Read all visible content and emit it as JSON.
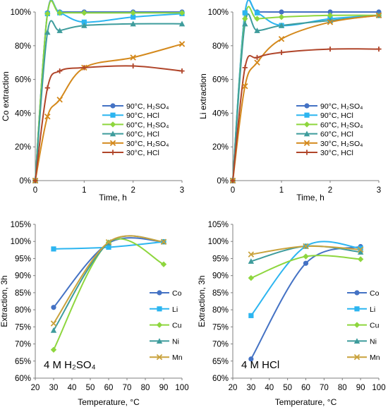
{
  "chart_data": [
    {
      "type": "line",
      "xlabel": "Time, h",
      "ylabel": "Co extraction",
      "xlim": [
        0,
        3
      ],
      "ylim": [
        0,
        100
      ],
      "x_ticks": [
        "0",
        "1",
        "2",
        "3"
      ],
      "y_ticks": [
        "0%",
        "20%",
        "40%",
        "60%",
        "80%",
        "100%"
      ],
      "grid": false,
      "legend_position": "center-right",
      "series": [
        {
          "name": "90°C, H₂SO₄",
          "color": "#4472C4",
          "marker": "circle",
          "x": [
            0,
            0.25,
            0.5,
            1,
            2,
            3
          ],
          "y": [
            0,
            99.5,
            100,
            100,
            100,
            100
          ]
        },
        {
          "name": "90°C, HCl",
          "color": "#2CB5F0",
          "marker": "square",
          "x": [
            0,
            0.25,
            0.5,
            1,
            2,
            3
          ],
          "y": [
            0,
            99,
            99.5,
            94,
            97,
            99
          ]
        },
        {
          "name": "60°C, H₂SO₄",
          "color": "#8ED63E",
          "marker": "diamond",
          "x": [
            0,
            0.25,
            0.5,
            1,
            2,
            3
          ],
          "y": [
            0,
            99,
            99.5,
            99.5,
            99.5,
            99.5
          ]
        },
        {
          "name": "60°C, HCl",
          "color": "#3E9C9C",
          "marker": "triangle",
          "x": [
            0,
            0.25,
            0.5,
            1,
            2,
            3
          ],
          "y": [
            0,
            88,
            89,
            92,
            93,
            93
          ]
        },
        {
          "name": "30°C, H₂SO₄",
          "color": "#D4891C",
          "marker": "x",
          "x": [
            0,
            0.25,
            0.5,
            1,
            2,
            3
          ],
          "y": [
            0,
            38,
            48,
            67,
            73,
            81
          ]
        },
        {
          "name": "30°C, HCl",
          "color": "#B0452A",
          "marker": "cross",
          "x": [
            0,
            0.25,
            0.5,
            1,
            2,
            3
          ],
          "y": [
            0,
            55,
            65,
            67,
            68,
            65
          ]
        }
      ]
    },
    {
      "type": "line",
      "xlabel": "Time, h",
      "ylabel": "Li extraction",
      "xlim": [
        0,
        3
      ],
      "ylim": [
        0,
        100
      ],
      "x_ticks": [
        "0",
        "1",
        "2",
        "3"
      ],
      "y_ticks": [
        "0%",
        "20%",
        "40%",
        "60%",
        "80%",
        "100%"
      ],
      "grid": false,
      "legend_position": "center-right",
      "series": [
        {
          "name": "90°C, H₂SO₄",
          "color": "#4472C4",
          "marker": "circle",
          "x": [
            0,
            0.25,
            0.5,
            1,
            2,
            3
          ],
          "y": [
            0,
            99.5,
            100,
            100,
            100,
            100
          ]
        },
        {
          "name": "90°C, HCl",
          "color": "#2CB5F0",
          "marker": "square",
          "x": [
            0,
            0.25,
            0.5,
            1,
            2,
            3
          ],
          "y": [
            0,
            99.5,
            99.5,
            92,
            96,
            98
          ]
        },
        {
          "name": "60°C, H₂SO₄",
          "color": "#8ED63E",
          "marker": "diamond",
          "x": [
            0,
            0.25,
            0.5,
            1,
            2,
            3
          ],
          "y": [
            0,
            96,
            96,
            97,
            98,
            98
          ]
        },
        {
          "name": "60°C, HCl",
          "color": "#3E9C9C",
          "marker": "triangle",
          "x": [
            0,
            0.25,
            0.5,
            1,
            2,
            3
          ],
          "y": [
            0,
            93,
            89,
            92,
            95,
            98
          ]
        },
        {
          "name": "30°C, H₂SO₄",
          "color": "#D4891C",
          "marker": "x",
          "x": [
            0,
            0.25,
            0.5,
            1,
            2,
            3
          ],
          "y": [
            0,
            56,
            70,
            84,
            94,
            98
          ]
        },
        {
          "name": "30°C, HCl",
          "color": "#B0452A",
          "marker": "cross",
          "x": [
            0,
            0.25,
            0.5,
            1,
            2,
            3
          ],
          "y": [
            0,
            67,
            73,
            76,
            78,
            78
          ]
        }
      ]
    },
    {
      "type": "line",
      "xlabel": "Temperature, °C",
      "ylabel": "Extraction, 3h",
      "annotation": "4 M H₂SO₄",
      "xlim": [
        20,
        100
      ],
      "ylim": [
        60,
        105
      ],
      "x_ticks": [
        "20",
        "30",
        "40",
        "50",
        "60",
        "70",
        "80",
        "90",
        "100"
      ],
      "y_ticks": [
        "60%",
        "65%",
        "70%",
        "75%",
        "80%",
        "85%",
        "90%",
        "95%",
        "100%",
        "105%"
      ],
      "grid": false,
      "legend_position": "right",
      "series": [
        {
          "name": "Co",
          "color": "#4472C4",
          "marker": "circle",
          "x": [
            30,
            60,
            90
          ],
          "y": [
            80.7,
            99.5,
            99.9
          ]
        },
        {
          "name": "Li",
          "color": "#2CB5F0",
          "marker": "square",
          "x": [
            30,
            60,
            90
          ],
          "y": [
            97.8,
            98.3,
            99.9
          ]
        },
        {
          "name": "Cu",
          "color": "#8ED63E",
          "marker": "diamond",
          "x": [
            30,
            60,
            90
          ],
          "y": [
            68.3,
            99.7,
            93.3
          ]
        },
        {
          "name": "Ni",
          "color": "#3E9C9C",
          "marker": "triangle",
          "x": [
            30,
            60,
            90
          ],
          "y": [
            74.0,
            99.6,
            99.9
          ]
        },
        {
          "name": "Mn",
          "color": "#C9A23C",
          "marker": "x",
          "x": [
            30,
            60,
            90
          ],
          "y": [
            76.0,
            99.8,
            99.9
          ]
        }
      ]
    },
    {
      "type": "line",
      "xlabel": "Temperature, °C",
      "ylabel": "Extraction, 3h",
      "annotation": "4 M HCl",
      "xlim": [
        20,
        100
      ],
      "ylim": [
        60,
        105
      ],
      "x_ticks": [
        "20",
        "30",
        "40",
        "50",
        "60",
        "70",
        "80",
        "90",
        "100"
      ],
      "y_ticks": [
        "60%",
        "65%",
        "70%",
        "75%",
        "80%",
        "85%",
        "90%",
        "95%",
        "100%",
        "105%"
      ],
      "grid": false,
      "legend_position": "right",
      "series": [
        {
          "name": "Co",
          "color": "#4472C4",
          "marker": "circle",
          "x": [
            30,
            60,
            90
          ],
          "y": [
            65.6,
            93.6,
            98.5
          ]
        },
        {
          "name": "Li",
          "color": "#2CB5F0",
          "marker": "square",
          "x": [
            30,
            60,
            90
          ],
          "y": [
            78.3,
            98.6,
            98.0
          ]
        },
        {
          "name": "Cu",
          "color": "#8ED63E",
          "marker": "diamond",
          "x": [
            30,
            60,
            90
          ],
          "y": [
            89.3,
            95.6,
            94.8
          ]
        },
        {
          "name": "Ni",
          "color": "#3E9C9C",
          "marker": "triangle",
          "x": [
            30,
            60,
            90
          ],
          "y": [
            94.2,
            98.6,
            96.9
          ]
        },
        {
          "name": "Mn",
          "color": "#C9A23C",
          "marker": "x",
          "x": [
            30,
            60,
            90
          ],
          "y": [
            96.2,
            98.6,
            97.6
          ]
        }
      ]
    }
  ]
}
